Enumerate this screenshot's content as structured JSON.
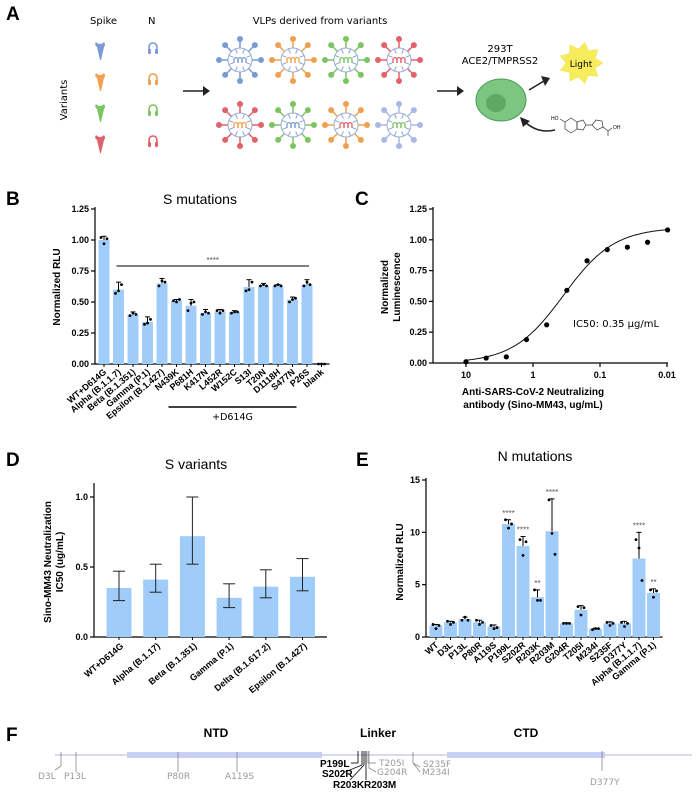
{
  "panels": {
    "A": "A",
    "B": "B",
    "C": "C",
    "D": "D",
    "E": "E",
    "F": "F"
  },
  "schematic": {
    "col_spike": "Spike",
    "col_n": "N",
    "row_label": "Variants",
    "vlp_title": "VLPs derived from variants",
    "cell_line": "293T",
    "cell_receptors": "ACE2/TMPRSS2",
    "light_label": "Light",
    "variant_colors": [
      "#7b9bd6",
      "#f0a050",
      "#7cc462",
      "#e0626a"
    ],
    "vlp_top_row": [
      {
        "spike": "#7b9bd6",
        "n": "#7b9bd6"
      },
      {
        "spike": "#f0a050",
        "n": "#f0a050"
      },
      {
        "spike": "#7cc462",
        "n": "#7cc462"
      },
      {
        "spike": "#e0626a",
        "n": "#e0626a"
      }
    ],
    "vlp_bottom_row": [
      {
        "spike": "#e0626a",
        "n": "#f0a050"
      },
      {
        "spike": "#7cc462",
        "n": "#7b9bd6"
      },
      {
        "spike": "#f0a050",
        "n": "#e0626a"
      },
      {
        "spike": "#a9b8e6",
        "n": "#7cc462"
      }
    ]
  },
  "chart_data": [
    {
      "id": "B",
      "type": "bar",
      "title": "S mutations",
      "ylabel": "Normalized RLU",
      "xlabel": "",
      "ylim": [
        0,
        1.25
      ],
      "yticks": [
        "0.00",
        "0.25",
        "0.50",
        "0.75",
        "1.00",
        "1.25"
      ],
      "categories": [
        "WT+D614G",
        "Alpha (B.1.1.7)",
        "Beta (B.1.351)",
        "Gamma (P.1)",
        "Epsilon (B.1.427)",
        "N439K",
        "P681H",
        "K417N",
        "L452R",
        "W152C",
        "S13I",
        "T20N",
        "D1118H",
        "S477N",
        "P26S",
        "blank"
      ],
      "values": [
        1.0,
        0.6,
        0.4,
        0.34,
        0.65,
        0.51,
        0.47,
        0.41,
        0.42,
        0.42,
        0.62,
        0.63,
        0.63,
        0.52,
        0.64,
        0.0
      ],
      "errors": [
        0.03,
        0.06,
        0.02,
        0.04,
        0.04,
        0.01,
        0.05,
        0.03,
        0.02,
        0.01,
        0.06,
        0.02,
        0.01,
        0.02,
        0.04,
        0.0
      ],
      "points": [
        [
          1.02,
          0.97,
          1.01
        ],
        [
          0.57,
          0.59,
          0.64
        ],
        [
          0.39,
          0.41,
          0.4
        ],
        [
          0.32,
          0.33,
          0.36
        ],
        [
          0.63,
          0.67,
          0.66
        ],
        [
          0.51,
          0.5,
          0.52
        ],
        [
          0.43,
          0.49,
          0.5
        ],
        [
          0.4,
          0.42,
          0.41
        ],
        [
          0.43,
          0.41,
          0.43
        ],
        [
          0.41,
          0.42,
          0.42
        ],
        [
          0.59,
          0.6,
          0.66
        ],
        [
          0.63,
          0.64,
          0.63
        ],
        [
          0.63,
          0.64,
          0.63
        ],
        [
          0.5,
          0.52,
          0.53
        ],
        [
          0.63,
          0.66,
          0.64
        ],
        [
          0,
          0,
          0
        ]
      ],
      "significance": {
        "label": "****",
        "from": "Alpha (B.1.1.7)",
        "to": "P26S"
      },
      "group_bracket": {
        "label": "+D614G",
        "from": "N439K",
        "to": "S477N"
      },
      "bar_color": "#9fccf8"
    },
    {
      "id": "C",
      "type": "line",
      "ylabel": "Normalized Luminescence",
      "xlabel": "Anti-SARS-CoV-2 Neutralizing antibody (Sino-MM43, ug/mL)",
      "x_scale": "log (reversed)",
      "xlim": [
        20,
        0.01
      ],
      "ylim": [
        0,
        1.25
      ],
      "xticks": [
        "10",
        "1",
        "0.1",
        "0.01"
      ],
      "yticks": [
        "0.00",
        "0.25",
        "0.50",
        "0.75",
        "1.00",
        "1.25"
      ],
      "x": [
        10,
        5,
        2.5,
        1.25,
        0.625,
        0.3125,
        0.156,
        0.078,
        0.039,
        0.0195,
        0.0098
      ],
      "y": [
        0.01,
        0.04,
        0.05,
        0.19,
        0.31,
        0.59,
        0.83,
        0.92,
        0.94,
        0.98,
        1.08
      ],
      "fit": {
        "bottom": 0.0,
        "top": 1.1,
        "ic50": 0.35,
        "hill": 1.15
      },
      "annotation": "IC50: 0.35 μg/mL"
    },
    {
      "id": "D",
      "type": "bar",
      "title": "S variants",
      "ylabel": "Sino-MM43 Neutralization IC50 (ug/mL)",
      "xlabel": "",
      "ylim": [
        0,
        1.0
      ],
      "yticks": [
        "0.0",
        "0.5",
        "1.0"
      ],
      "categories": [
        "WT+D614G",
        "Alpha (B.1.17)",
        "Beta (B.1.351)",
        "Gamma (P.1)",
        "Delta (B.1.617.2)",
        "Epsilon (B.1.427)"
      ],
      "values": [
        0.35,
        0.41,
        0.72,
        0.28,
        0.36,
        0.43
      ],
      "error_low": [
        0.26,
        0.32,
        0.52,
        0.21,
        0.28,
        0.33
      ],
      "error_high": [
        0.47,
        0.52,
        1.0,
        0.38,
        0.48,
        0.56
      ],
      "bar_color": "#9fccf8"
    },
    {
      "id": "E",
      "type": "bar",
      "title": "N mutations",
      "ylabel": "Normalized RLU",
      "xlabel": "",
      "ylim": [
        0,
        15
      ],
      "yticks": [
        "0",
        "5",
        "10",
        "15"
      ],
      "categories": [
        "WT",
        "D3L",
        "P13L",
        "P80R",
        "A119S",
        "P199L",
        "S202R",
        "R203K",
        "R203M",
        "G204R",
        "T205I",
        "M234I",
        "S235F",
        "D377Y",
        "Alpha (B.1.1.7)",
        "Gamma (P.1)"
      ],
      "values": [
        1.1,
        1.4,
        1.7,
        1.4,
        1.0,
        10.8,
        8.7,
        3.8,
        10.1,
        1.3,
        2.6,
        0.8,
        1.3,
        1.3,
        7.5,
        4.2
      ],
      "errors": [
        0.1,
        0.1,
        0.2,
        0.2,
        0.15,
        0.4,
        0.9,
        0.7,
        3.1,
        0.05,
        0.4,
        0.05,
        0.15,
        0.2,
        2.5,
        0.4
      ],
      "points": [
        [
          1.2,
          0.8,
          1.1
        ],
        [
          1.5,
          1.2,
          1.4
        ],
        [
          1.6,
          1.9,
          1.6
        ],
        [
          1.6,
          1.2,
          1.4
        ],
        [
          1.1,
          0.8,
          0.9
        ],
        [
          11.2,
          10.4,
          10.8
        ],
        [
          9.3,
          7.8,
          9.1
        ],
        [
          4.5,
          3.5,
          3.5
        ],
        [
          13.1,
          9.9,
          7.9
        ],
        [
          1.3,
          1.3,
          1.3
        ],
        [
          2.9,
          2.1,
          2.8
        ],
        [
          0.7,
          0.8,
          0.8
        ],
        [
          1.4,
          1.1,
          1.3
        ],
        [
          1.4,
          1.0,
          1.3
        ],
        [
          9.3,
          8.5,
          5.4
        ],
        [
          4.5,
          3.8,
          4.4
        ]
      ],
      "significance": [
        "",
        "",
        "",
        "",
        "",
        "****",
        "****",
        "**",
        "****",
        "",
        "",
        "",
        "",
        "",
        "****",
        "**"
      ],
      "bar_color": "#9fccf8"
    }
  ],
  "domain_map": {
    "domains": [
      "NTD",
      "Linker",
      "CTD"
    ],
    "grey_mutations": [
      "D3L",
      "P13L",
      "P80R",
      "A119S",
      "T205I",
      "G204R",
      "S235F",
      "M234I",
      "D377Y"
    ],
    "bold_mutations": [
      "P199L",
      "S202R",
      "R203K",
      "R203M"
    ],
    "line_color": "#c8cdf0",
    "domain_color": "#c7cff2"
  }
}
